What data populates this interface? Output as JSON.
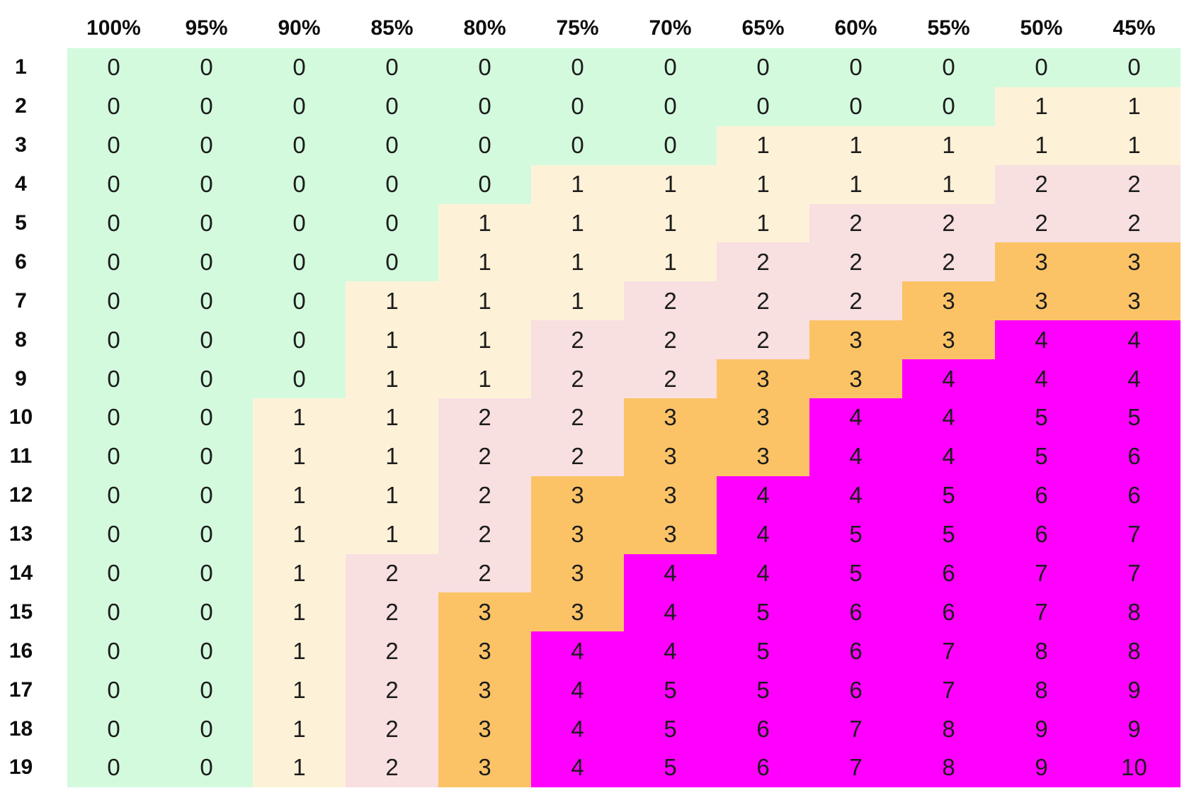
{
  "chart_data": {
    "type": "heatmap",
    "title": "",
    "xlabel": "",
    "ylabel": "",
    "grid": false,
    "legend_position": "none",
    "columns": [
      "100%",
      "95%",
      "90%",
      "85%",
      "80%",
      "75%",
      "70%",
      "65%",
      "60%",
      "55%",
      "50%",
      "45%"
    ],
    "rows": [
      "1",
      "2",
      "3",
      "4",
      "5",
      "6",
      "7",
      "8",
      "9",
      "10",
      "11",
      "12",
      "13",
      "14",
      "15",
      "16",
      "17",
      "18",
      "19"
    ],
    "values": [
      [
        0,
        0,
        0,
        0,
        0,
        0,
        0,
        0,
        0,
        0,
        0,
        0
      ],
      [
        0,
        0,
        0,
        0,
        0,
        0,
        0,
        0,
        0,
        0,
        1,
        1
      ],
      [
        0,
        0,
        0,
        0,
        0,
        0,
        0,
        1,
        1,
        1,
        1,
        1
      ],
      [
        0,
        0,
        0,
        0,
        0,
        1,
        1,
        1,
        1,
        1,
        2,
        2
      ],
      [
        0,
        0,
        0,
        0,
        1,
        1,
        1,
        1,
        2,
        2,
        2,
        2
      ],
      [
        0,
        0,
        0,
        0,
        1,
        1,
        1,
        2,
        2,
        2,
        3,
        3
      ],
      [
        0,
        0,
        0,
        1,
        1,
        1,
        2,
        2,
        2,
        3,
        3,
        3
      ],
      [
        0,
        0,
        0,
        1,
        1,
        2,
        2,
        2,
        3,
        3,
        4,
        4
      ],
      [
        0,
        0,
        0,
        1,
        1,
        2,
        2,
        3,
        3,
        4,
        4,
        4
      ],
      [
        0,
        0,
        1,
        1,
        2,
        2,
        3,
        3,
        4,
        4,
        5,
        5
      ],
      [
        0,
        0,
        1,
        1,
        2,
        2,
        3,
        3,
        4,
        4,
        5,
        6
      ],
      [
        0,
        0,
        1,
        1,
        2,
        3,
        3,
        4,
        4,
        5,
        6,
        6
      ],
      [
        0,
        0,
        1,
        1,
        2,
        3,
        3,
        4,
        5,
        5,
        6,
        7
      ],
      [
        0,
        0,
        1,
        2,
        2,
        3,
        4,
        4,
        5,
        6,
        7,
        7
      ],
      [
        0,
        0,
        1,
        2,
        3,
        3,
        4,
        5,
        6,
        6,
        7,
        8
      ],
      [
        0,
        0,
        1,
        2,
        3,
        4,
        4,
        5,
        6,
        7,
        8,
        8
      ],
      [
        0,
        0,
        1,
        2,
        3,
        4,
        5,
        5,
        6,
        7,
        8,
        9
      ],
      [
        0,
        0,
        1,
        2,
        3,
        4,
        5,
        6,
        7,
        8,
        9,
        9
      ],
      [
        0,
        0,
        1,
        2,
        3,
        4,
        5,
        6,
        7,
        8,
        9,
        10
      ]
    ],
    "color_scale": [
      {
        "value": "0",
        "color": "#d4fade"
      },
      {
        "value": "1",
        "color": "#fdf2d7"
      },
      {
        "value": "2",
        "color": "#f8dfe0"
      },
      {
        "value": "3",
        "color": "#fbc366"
      },
      {
        "value": "4+",
        "color": "#ff00ff"
      }
    ]
  }
}
